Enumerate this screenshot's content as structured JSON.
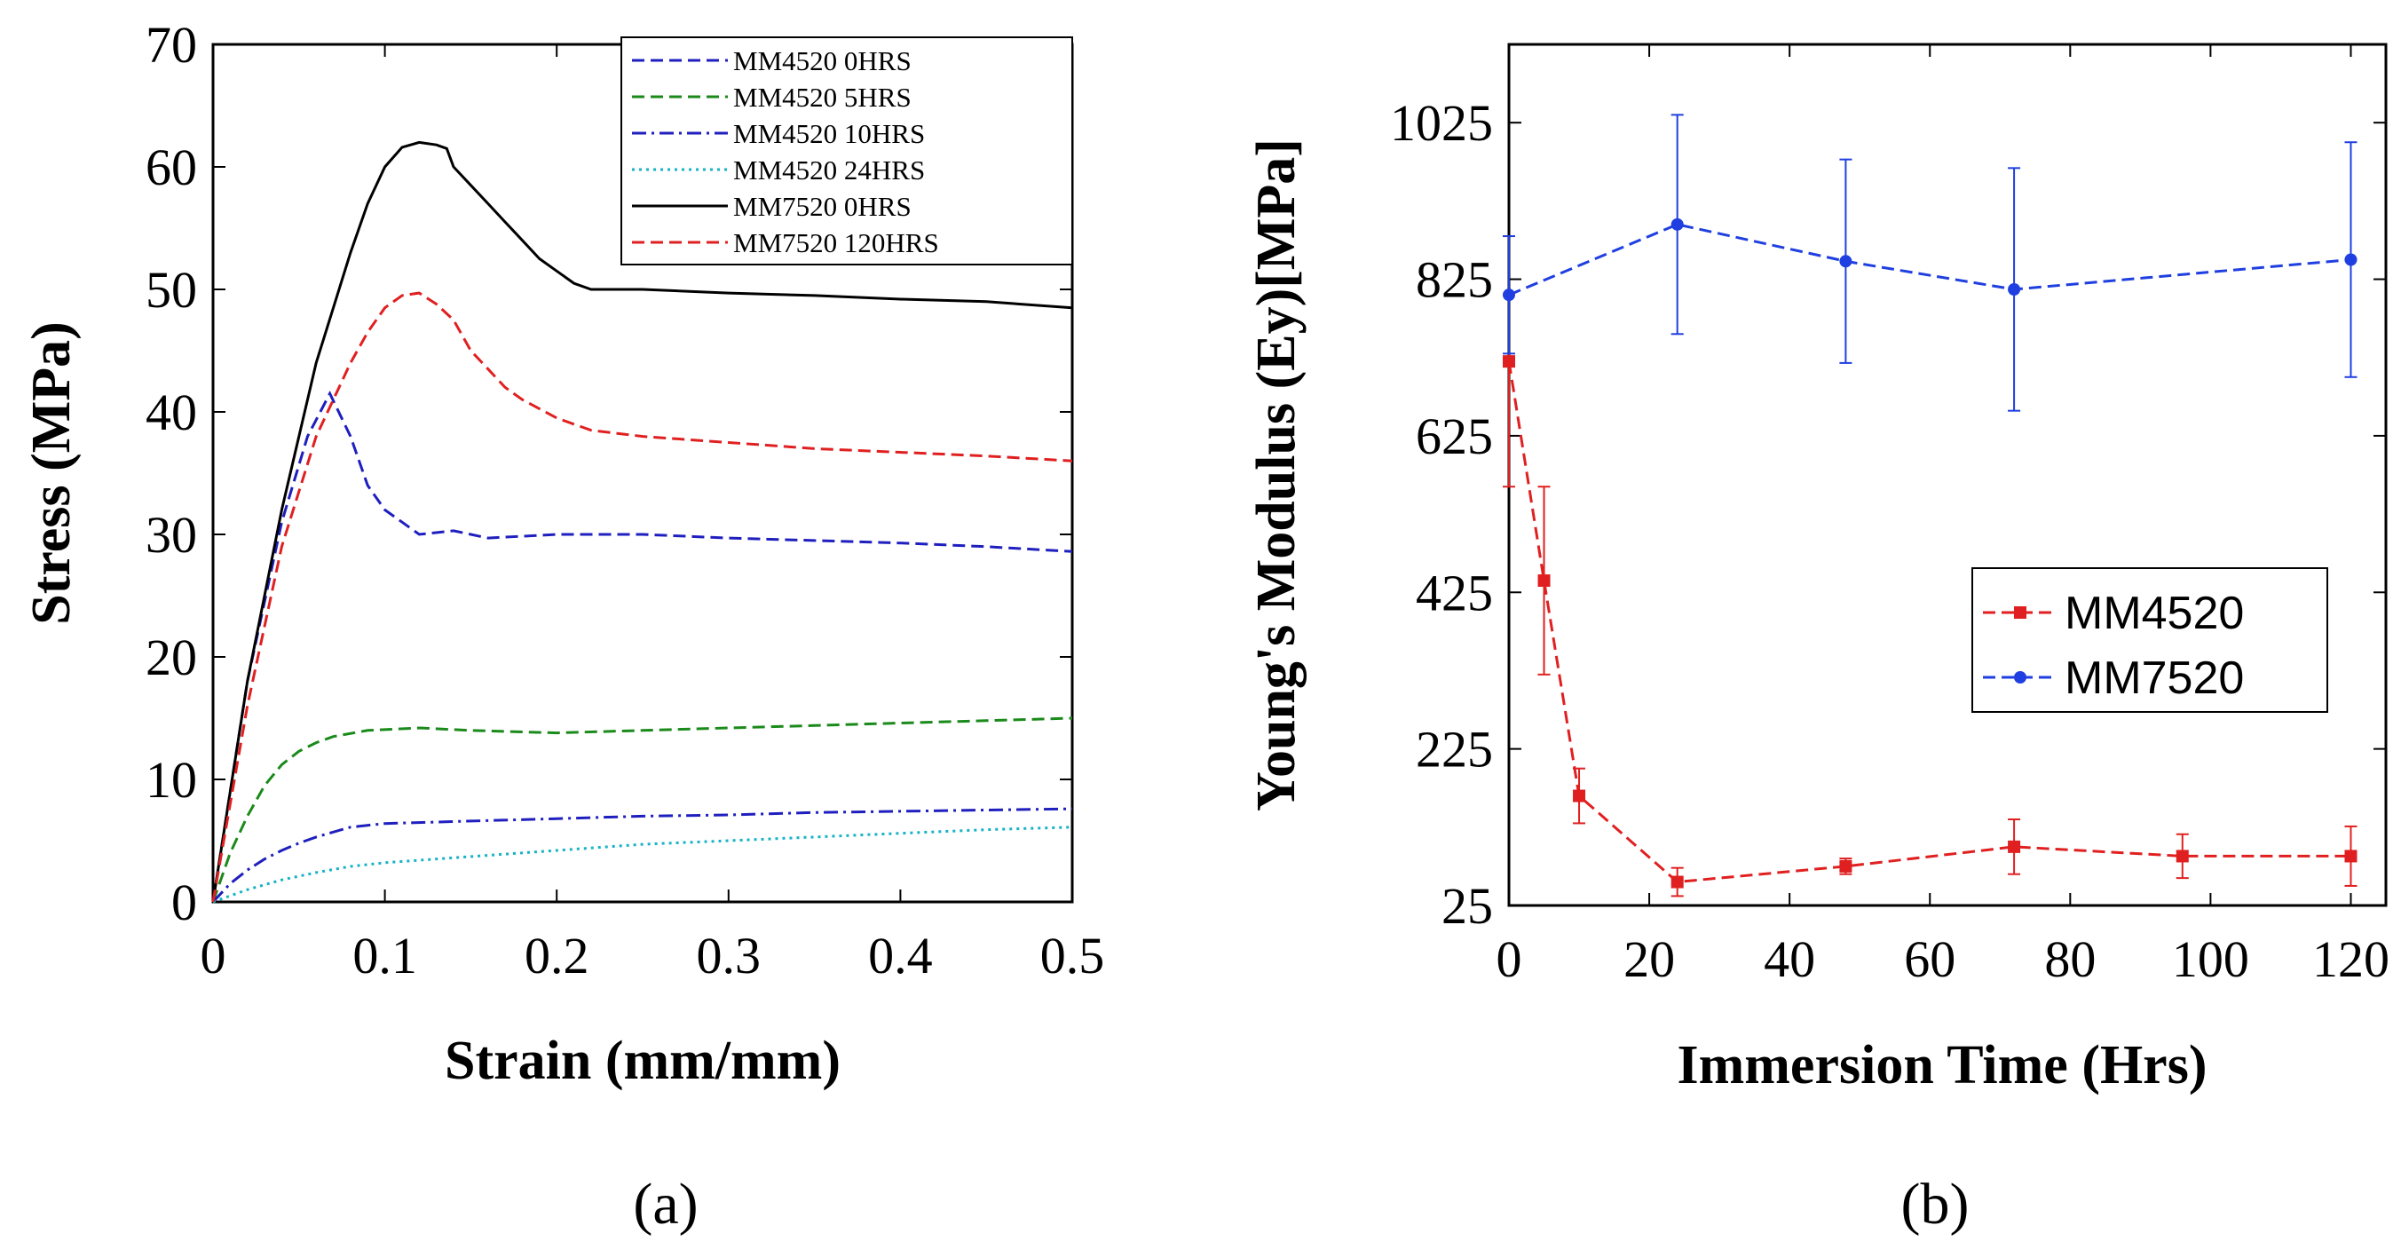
{
  "chart_data": [
    {
      "type": "line",
      "panel_label": "(a)",
      "xlabel": "Strain (mm/mm)",
      "ylabel": "Stress (MPa)",
      "xlim": [
        0,
        0.5
      ],
      "ylim": [
        0,
        70
      ],
      "x_ticks": [
        0,
        0.1,
        0.2,
        0.3,
        0.4,
        0.5
      ],
      "x_tick_labels": [
        "0",
        "0.1",
        "0.2",
        "0.3",
        "0.4",
        "0.5"
      ],
      "y_ticks": [
        0,
        10,
        20,
        30,
        40,
        50,
        60,
        70
      ],
      "y_tick_labels": [
        "0",
        "10",
        "20",
        "30",
        "40",
        "50",
        "60",
        "70"
      ],
      "legend_position": "top-right",
      "series": [
        {
          "name": "MM4520 0HRS",
          "color": "#1f1fbf",
          "dash": "dashed",
          "x": [
            0,
            0.02,
            0.04,
            0.055,
            0.068,
            0.08,
            0.09,
            0.1,
            0.11,
            0.12,
            0.14,
            0.16,
            0.2,
            0.25,
            0.3,
            0.35,
            0.4,
            0.45,
            0.5
          ],
          "y": [
            0,
            18,
            31,
            38,
            41.5,
            38,
            34,
            32,
            31,
            30,
            30.3,
            29.7,
            30,
            30,
            29.7,
            29.5,
            29.3,
            29,
            28.6
          ]
        },
        {
          "name": "MM4520 5HRS",
          "color": "#1a8a1a",
          "dash": "dashed",
          "x": [
            0,
            0.01,
            0.02,
            0.03,
            0.04,
            0.05,
            0.06,
            0.07,
            0.09,
            0.12,
            0.15,
            0.2,
            0.25,
            0.3,
            0.35,
            0.4,
            0.45,
            0.5
          ],
          "y": [
            0,
            4,
            7,
            9.5,
            11.2,
            12.3,
            13,
            13.5,
            14,
            14.2,
            14,
            13.8,
            14,
            14.2,
            14.4,
            14.6,
            14.8,
            15
          ]
        },
        {
          "name": "MM4520 10HRS",
          "color": "#1f1fbf",
          "dash": "dashdot",
          "x": [
            0,
            0.01,
            0.02,
            0.03,
            0.04,
            0.05,
            0.06,
            0.07,
            0.08,
            0.1,
            0.15,
            0.2,
            0.25,
            0.3,
            0.35,
            0.4,
            0.45,
            0.5
          ],
          "y": [
            0,
            1.5,
            2.6,
            3.5,
            4.2,
            4.8,
            5.3,
            5.7,
            6.1,
            6.4,
            6.6,
            6.8,
            7,
            7.1,
            7.3,
            7.4,
            7.5,
            7.6
          ]
        },
        {
          "name": "MM4520 24HRS",
          "color": "#17b3c4",
          "dash": "dotted",
          "x": [
            0,
            0.01,
            0.02,
            0.04,
            0.06,
            0.08,
            0.1,
            0.15,
            0.2,
            0.25,
            0.3,
            0.35,
            0.4,
            0.45,
            0.5
          ],
          "y": [
            0,
            0.5,
            1,
            1.8,
            2.4,
            2.9,
            3.2,
            3.7,
            4.2,
            4.7,
            5,
            5.3,
            5.6,
            5.9,
            6.1
          ]
        },
        {
          "name": "MM7520 0HRS",
          "color": "#000000",
          "dash": "solid",
          "x": [
            0,
            0.02,
            0.04,
            0.06,
            0.08,
            0.09,
            0.1,
            0.11,
            0.12,
            0.13,
            0.136,
            0.14,
            0.15,
            0.16,
            0.17,
            0.18,
            0.19,
            0.2,
            0.21,
            0.22,
            0.25,
            0.3,
            0.35,
            0.4,
            0.45,
            0.5
          ],
          "y": [
            0,
            18,
            32,
            44,
            53,
            57,
            60,
            61.6,
            62,
            61.8,
            61.5,
            60,
            58.5,
            57,
            55.5,
            54,
            52.5,
            51.5,
            50.5,
            50,
            50,
            49.7,
            49.5,
            49.2,
            49,
            48.5
          ]
        },
        {
          "name": "MM7520 120HRS",
          "color": "#e02020",
          "dash": "dashed",
          "x": [
            0,
            0.02,
            0.04,
            0.06,
            0.08,
            0.09,
            0.1,
            0.11,
            0.12,
            0.13,
            0.14,
            0.15,
            0.16,
            0.17,
            0.18,
            0.2,
            0.22,
            0.25,
            0.3,
            0.35,
            0.4,
            0.45,
            0.5
          ],
          "y": [
            0,
            16,
            29,
            38,
            44,
            46.5,
            48.5,
            49.5,
            49.7,
            48.8,
            47.5,
            45,
            43.5,
            42,
            41,
            39.5,
            38.5,
            38,
            37.5,
            37,
            36.7,
            36.4,
            36
          ]
        }
      ]
    },
    {
      "type": "line",
      "panel_label": "(b)",
      "xlabel": "Immersion Time (Hrs)",
      "ylabel": "Young's Modulus (Ey)[MPa]",
      "xlim": [
        0,
        125
      ],
      "ylim": [
        25,
        1125
      ],
      "x_ticks": [
        0,
        20,
        40,
        60,
        80,
        100,
        120
      ],
      "x_tick_labels": [
        "0",
        "20",
        "40",
        "60",
        "80",
        "100",
        "120"
      ],
      "y_ticks": [
        25,
        225,
        425,
        625,
        825,
        1025
      ],
      "y_tick_labels": [
        "25",
        "225",
        "425",
        "625",
        "825",
        "1025"
      ],
      "legend_position": "center-right",
      "series": [
        {
          "name": "MM4520",
          "color": "#e02020",
          "dash": "dashed",
          "marker": "square",
          "x": [
            0,
            5,
            10,
            24,
            48,
            72,
            96,
            120
          ],
          "y": [
            720,
            440,
            165,
            55,
            75,
            100,
            88,
            88
          ],
          "yerr": [
            160,
            120,
            35,
            18,
            10,
            35,
            28,
            38
          ]
        },
        {
          "name": "MM7520",
          "color": "#1f3fe0",
          "dash": "dashed",
          "marker": "circle",
          "x": [
            0,
            24,
            48,
            72,
            120
          ],
          "y": [
            805,
            895,
            848,
            812,
            850
          ],
          "yerr": [
            75,
            140,
            130,
            155,
            150
          ]
        }
      ]
    }
  ]
}
